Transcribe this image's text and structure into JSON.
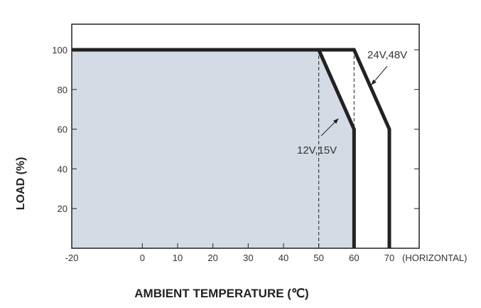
{
  "chart_data": {
    "type": "line",
    "title": "",
    "xlabel": "AMBIENT TEMPERATURE (℃)",
    "ylabel": "LOAD (%)",
    "x_note": "(HORIZONTAL)",
    "xlim": [
      -20,
      77.5
    ],
    "ylim": [
      0,
      113
    ],
    "xticks": [
      -20,
      0,
      10,
      20,
      30,
      40,
      50,
      60,
      70
    ],
    "xtick_labels": [
      "-20",
      "0",
      "10",
      "20",
      "30",
      "40",
      "50",
      "60",
      "70"
    ],
    "yticks": [
      20,
      40,
      60,
      80,
      100
    ],
    "ytick_labels": [
      "20",
      "40",
      "60",
      "80",
      "100"
    ],
    "grid": false,
    "series": [
      {
        "name": "12V,15V",
        "x": [
          -20,
          50,
          60,
          60
        ],
        "y": [
          100,
          100,
          60,
          0
        ],
        "filled": true
      },
      {
        "name": "24V,48V",
        "x": [
          -20,
          60,
          70,
          70
        ],
        "y": [
          100,
          100,
          60,
          0
        ],
        "filled": false
      }
    ],
    "reference_lines": [
      {
        "x": 50,
        "y_from": 0,
        "y_to": 100,
        "style": "dashed"
      },
      {
        "x": 60,
        "y_from": 0,
        "y_to": 100,
        "style": "dashed"
      }
    ],
    "annotations": [
      {
        "text": "12V,15V",
        "points_to_series": "12V,15V"
      },
      {
        "text": "24V,48V",
        "points_to_series": "24V,48V"
      }
    ],
    "colors": {
      "fill": "#d3dce4",
      "line": "#222222",
      "frame": "#222222"
    }
  }
}
